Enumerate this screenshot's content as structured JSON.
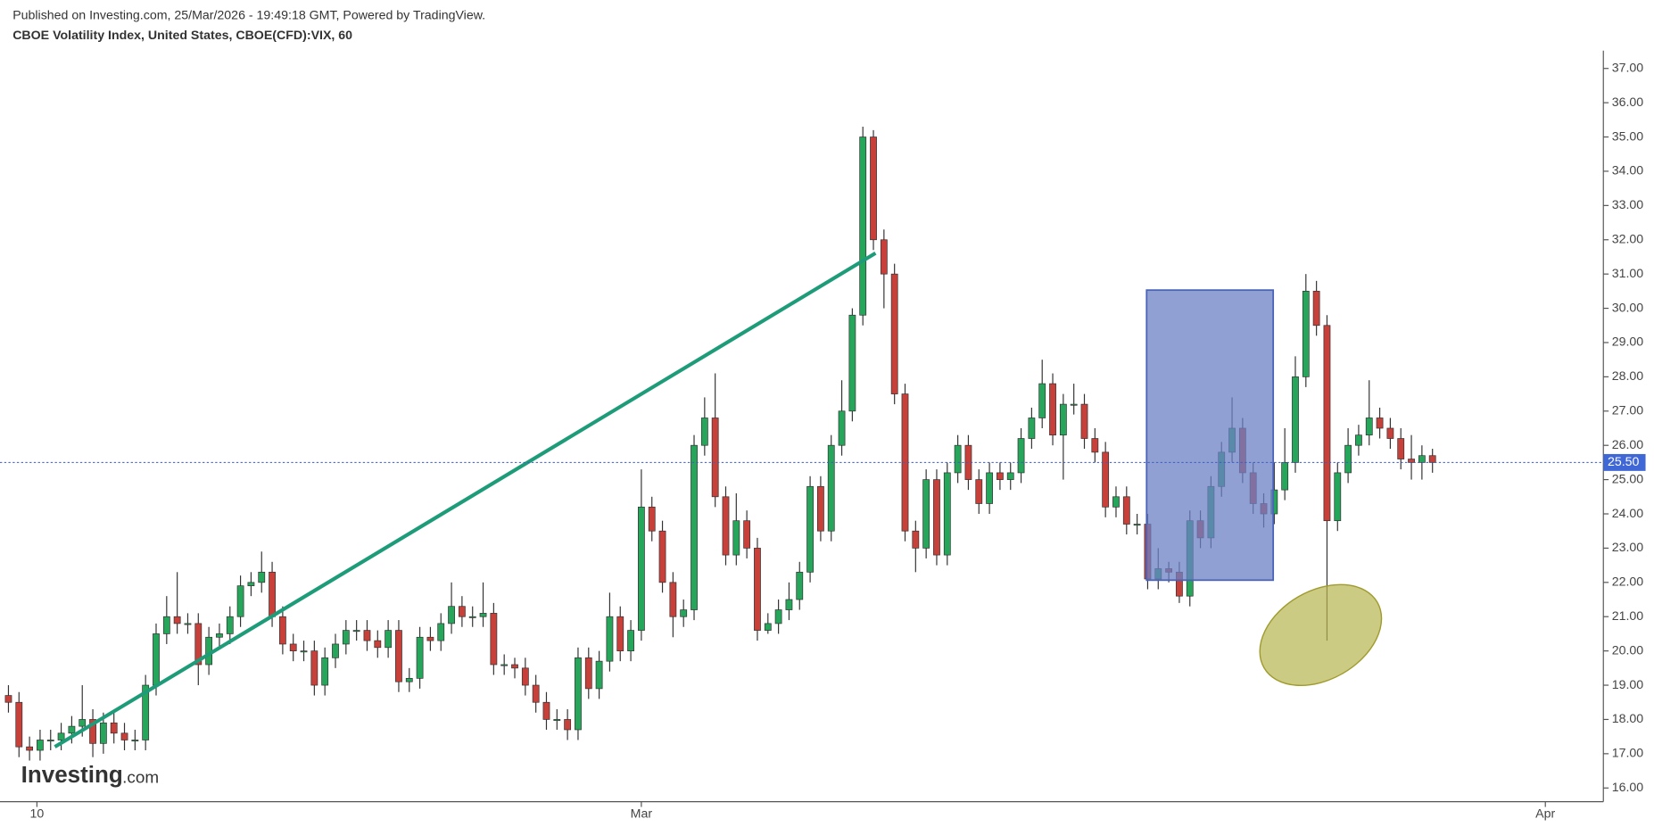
{
  "header": {
    "published": "Published on Investing.com, 25/Mar/2026 - 19:49:18 GMT, Powered by TradingView.",
    "instrument": "CBOE Volatility Index, United States, CBOE(CFD):VIX, 60"
  },
  "logo": {
    "name": "Investing",
    "suffix": ".com"
  },
  "chart_data": {
    "type": "candlestick",
    "up_color": "#26a65b",
    "down_color": "#c8403a",
    "xlim": [
      -0.8,
      151.2
    ],
    "xticks": [
      {
        "value": 2.7,
        "label": "10"
      },
      {
        "value": 60,
        "label": "Mar"
      },
      {
        "value": 145.7,
        "label": "Apr"
      }
    ],
    "ylim": [
      15.6,
      37.52
    ],
    "yticks": [
      {
        "value": 16,
        "label": "16.00"
      },
      {
        "value": 17,
        "label": "17.00"
      },
      {
        "value": 18,
        "label": "18.00"
      },
      {
        "value": 19,
        "label": "19.00"
      },
      {
        "value": 20,
        "label": "20.00"
      },
      {
        "value": 21,
        "label": "21.00"
      },
      {
        "value": 22,
        "label": "22.00"
      },
      {
        "value": 23,
        "label": "23.00"
      },
      {
        "value": 24,
        "label": "24.00"
      },
      {
        "value": 25,
        "label": "25.00"
      },
      {
        "value": 26,
        "label": "26.00"
      },
      {
        "value": 27,
        "label": "27.00"
      },
      {
        "value": 28,
        "label": "28.00"
      },
      {
        "value": 29,
        "label": "29.00"
      },
      {
        "value": 30,
        "label": "30.00"
      },
      {
        "value": 31,
        "label": "31.00"
      },
      {
        "value": 32,
        "label": "32.00"
      },
      {
        "value": 33,
        "label": "33.00"
      },
      {
        "value": 34,
        "label": "34.00"
      },
      {
        "value": 35,
        "label": "35.00"
      },
      {
        "value": 36,
        "label": "36.00"
      },
      {
        "value": 37,
        "label": "37.00"
      }
    ],
    "last_price": {
      "value": 25.5,
      "label": "25.50"
    },
    "open": [
      18.7,
      18.5,
      17.2,
      17.1,
      17.4,
      17.4,
      17.6,
      17.8,
      18.0,
      17.3,
      17.9,
      17.6,
      17.4,
      17.4,
      19.0,
      20.5,
      21.0,
      20.8,
      20.8,
      19.6,
      20.4,
      20.5,
      21.0,
      21.9,
      22.0,
      22.3,
      21.0,
      20.2,
      20.0,
      20.0,
      19.0,
      19.8,
      20.2,
      20.6,
      20.6,
      20.3,
      20.1,
      20.6,
      19.1,
      19.2,
      20.4,
      20.3,
      20.8,
      21.3,
      21.0,
      21.0,
      21.1,
      19.6,
      19.6,
      19.5,
      19.0,
      18.5,
      18.0,
      18.0,
      17.7,
      19.8,
      18.9,
      19.7,
      21.0,
      20.0,
      20.6,
      24.2,
      23.5,
      22.0,
      21.0,
      21.2,
      26.0,
      26.8,
      24.5,
      22.8,
      23.8,
      23.0,
      20.6,
      20.8,
      21.2,
      21.5,
      22.3,
      24.8,
      23.5,
      26.0,
      27.0,
      29.8,
      35.0,
      32.0,
      31.0,
      27.5,
      23.5,
      23.0,
      25.0,
      22.8,
      25.2,
      26.0,
      25.0,
      24.3,
      25.2,
      25.0,
      25.2,
      26.2,
      26.8,
      27.8,
      26.3,
      27.2,
      27.2,
      26.2,
      25.8,
      24.2,
      24.5,
      23.7,
      23.7,
      22.1,
      22.4,
      22.3,
      21.6,
      23.8,
      23.3,
      24.8,
      25.8,
      26.5,
      25.2,
      24.3,
      24.0,
      24.7,
      25.5,
      28.0,
      30.5,
      29.5,
      23.8,
      25.2,
      26.0,
      26.3,
      26.8,
      26.5,
      26.2,
      25.6,
      25.5,
      25.7
    ],
    "high": [
      19.0,
      18.8,
      17.5,
      17.7,
      17.7,
      17.9,
      18.1,
      19.0,
      18.3,
      18.2,
      18.2,
      17.9,
      17.7,
      19.3,
      20.8,
      21.6,
      22.3,
      21.1,
      21.1,
      20.7,
      20.8,
      21.3,
      22.2,
      22.3,
      22.9,
      22.6,
      21.3,
      20.5,
      20.3,
      20.3,
      20.1,
      20.5,
      20.9,
      20.9,
      20.9,
      20.6,
      20.9,
      20.9,
      19.5,
      20.7,
      20.7,
      21.1,
      22.0,
      21.6,
      21.3,
      22.0,
      21.4,
      19.9,
      19.8,
      19.8,
      19.3,
      18.8,
      18.3,
      18.3,
      20.1,
      20.1,
      20.0,
      21.7,
      21.3,
      20.9,
      25.3,
      24.5,
      23.8,
      22.3,
      21.5,
      26.3,
      27.4,
      28.1,
      24.8,
      24.6,
      24.1,
      23.3,
      21.1,
      21.5,
      22.0,
      22.6,
      25.1,
      25.1,
      26.3,
      27.9,
      30.0,
      35.3,
      35.2,
      32.3,
      31.3,
      27.8,
      23.8,
      25.3,
      25.3,
      25.5,
      26.3,
      26.3,
      25.3,
      25.5,
      25.5,
      25.5,
      26.5,
      27.1,
      28.5,
      28.1,
      27.5,
      27.8,
      27.5,
      26.5,
      26.1,
      24.8,
      24.8,
      24.0,
      24.0,
      23.0,
      22.6,
      22.6,
      24.1,
      24.1,
      25.1,
      26.1,
      27.4,
      26.8,
      25.5,
      24.6,
      25.5,
      26.5,
      28.6,
      31.0,
      30.8,
      29.8,
      25.5,
      26.5,
      26.6,
      27.9,
      27.1,
      26.8,
      26.5,
      26.3,
      26.0,
      25.9
    ],
    "low": [
      18.2,
      16.9,
      16.8,
      16.8,
      17.1,
      17.1,
      17.3,
      17.5,
      16.9,
      17.0,
      17.3,
      17.1,
      17.1,
      17.1,
      18.7,
      20.2,
      20.5,
      20.5,
      19.0,
      19.3,
      20.1,
      20.2,
      20.7,
      21.6,
      21.7,
      20.7,
      19.9,
      19.7,
      19.7,
      18.7,
      18.7,
      19.5,
      19.9,
      20.3,
      20.0,
      19.8,
      19.8,
      18.8,
      18.8,
      18.9,
      20.0,
      20.0,
      20.5,
      20.7,
      20.7,
      20.7,
      19.3,
      19.3,
      19.2,
      18.7,
      18.2,
      17.7,
      17.7,
      17.4,
      17.4,
      18.6,
      18.6,
      19.4,
      19.7,
      19.7,
      20.3,
      23.2,
      21.7,
      20.4,
      20.7,
      20.9,
      25.7,
      24.2,
      22.5,
      22.5,
      22.7,
      20.3,
      20.5,
      20.5,
      20.9,
      21.2,
      22.0,
      23.2,
      23.2,
      25.7,
      26.7,
      29.5,
      31.7,
      30.0,
      27.2,
      23.2,
      22.3,
      22.7,
      22.5,
      22.5,
      24.9,
      24.7,
      24.0,
      24.0,
      24.7,
      24.7,
      24.9,
      25.9,
      26.5,
      26.0,
      25.0,
      26.9,
      25.9,
      25.5,
      23.9,
      23.9,
      23.4,
      23.4,
      21.8,
      21.8,
      22.0,
      21.4,
      21.3,
      23.0,
      23.0,
      24.5,
      25.5,
      24.9,
      24.0,
      23.6,
      23.7,
      24.4,
      25.2,
      27.7,
      29.2,
      20.3,
      23.5,
      24.9,
      25.7,
      26.0,
      26.2,
      25.9,
      25.3,
      25.0,
      25.0,
      25.2
    ],
    "close": [
      18.5,
      17.2,
      17.1,
      17.4,
      17.4,
      17.6,
      17.8,
      18.0,
      17.3,
      17.9,
      17.6,
      17.4,
      17.4,
      19.0,
      20.5,
      21.0,
      20.8,
      20.8,
      19.6,
      20.4,
      20.5,
      21.0,
      21.9,
      22.0,
      22.3,
      21.0,
      20.2,
      20.0,
      20.0,
      19.0,
      19.8,
      20.2,
      20.6,
      20.6,
      20.3,
      20.1,
      20.6,
      19.1,
      19.2,
      20.4,
      20.3,
      20.8,
      21.3,
      21.0,
      21.0,
      21.1,
      19.6,
      19.6,
      19.5,
      19.0,
      18.5,
      18.0,
      18.0,
      17.7,
      19.8,
      18.9,
      19.7,
      21.0,
      20.0,
      20.6,
      24.2,
      23.5,
      22.0,
      21.0,
      21.2,
      26.0,
      26.8,
      24.5,
      22.8,
      23.8,
      23.0,
      20.6,
      20.8,
      21.2,
      21.5,
      22.3,
      24.8,
      23.5,
      26.0,
      27.0,
      29.8,
      35.0,
      32.0,
      31.0,
      27.5,
      23.5,
      23.0,
      25.0,
      22.8,
      25.2,
      26.0,
      25.0,
      24.3,
      25.2,
      25.0,
      25.2,
      26.2,
      26.8,
      27.8,
      26.3,
      27.2,
      27.2,
      26.2,
      25.8,
      24.2,
      24.5,
      23.7,
      23.7,
      22.1,
      22.4,
      22.3,
      21.6,
      23.8,
      23.3,
      24.8,
      25.8,
      26.5,
      25.2,
      24.3,
      24.0,
      24.7,
      25.5,
      28.0,
      30.5,
      29.5,
      23.8,
      25.2,
      26.0,
      26.3,
      26.8,
      26.5,
      26.2,
      25.6,
      25.5,
      25.7,
      25.5
    ]
  }
}
